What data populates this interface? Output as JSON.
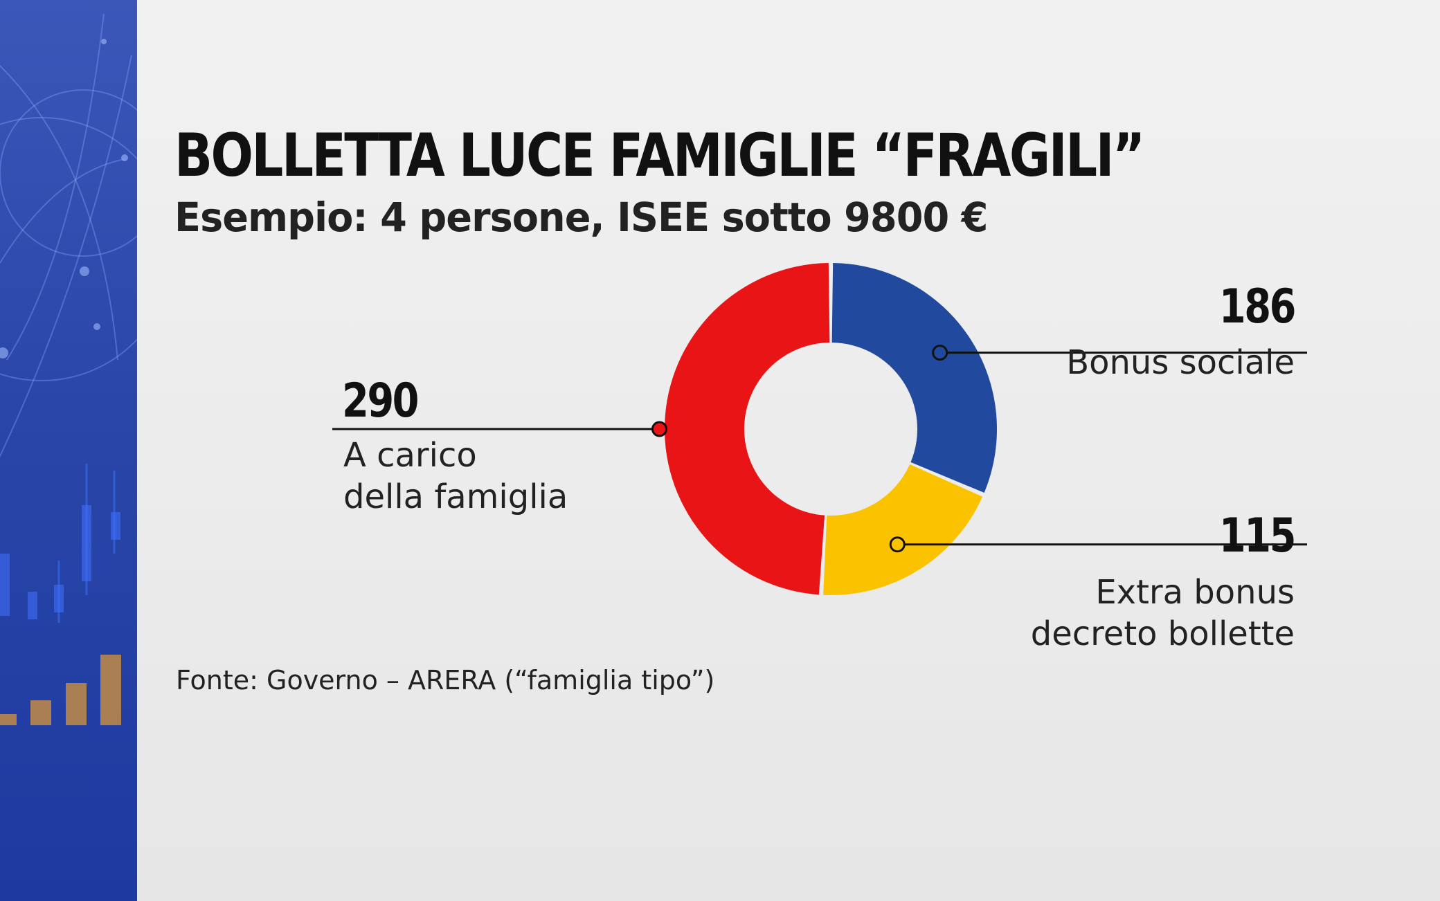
{
  "header": {
    "title": "BOLLETTA LUCE FAMIGLIE “FRAGILI”",
    "subtitle": "Esempio: 4 persone, ISEE sotto 9800 €"
  },
  "footer": {
    "source": "Fonte: Governo – ARERA (“famiglia tipo”)"
  },
  "chart_data": {
    "type": "pie",
    "donut": true,
    "title": "BOLLETTA LUCE FAMIGLIE “FRAGILI”",
    "subtitle": "Esempio: 4 persone, ISEE sotto 9800 €",
    "slices": [
      {
        "label": "Bonus sociale",
        "value": 186,
        "color": "#214a9e"
      },
      {
        "label": "Extra bonus\ndecreto bollette",
        "value": 115,
        "color": "#fbc200"
      },
      {
        "label": "A carico\ndella famiglia",
        "value": 290,
        "color": "#e81416"
      }
    ],
    "legend": "none"
  }
}
